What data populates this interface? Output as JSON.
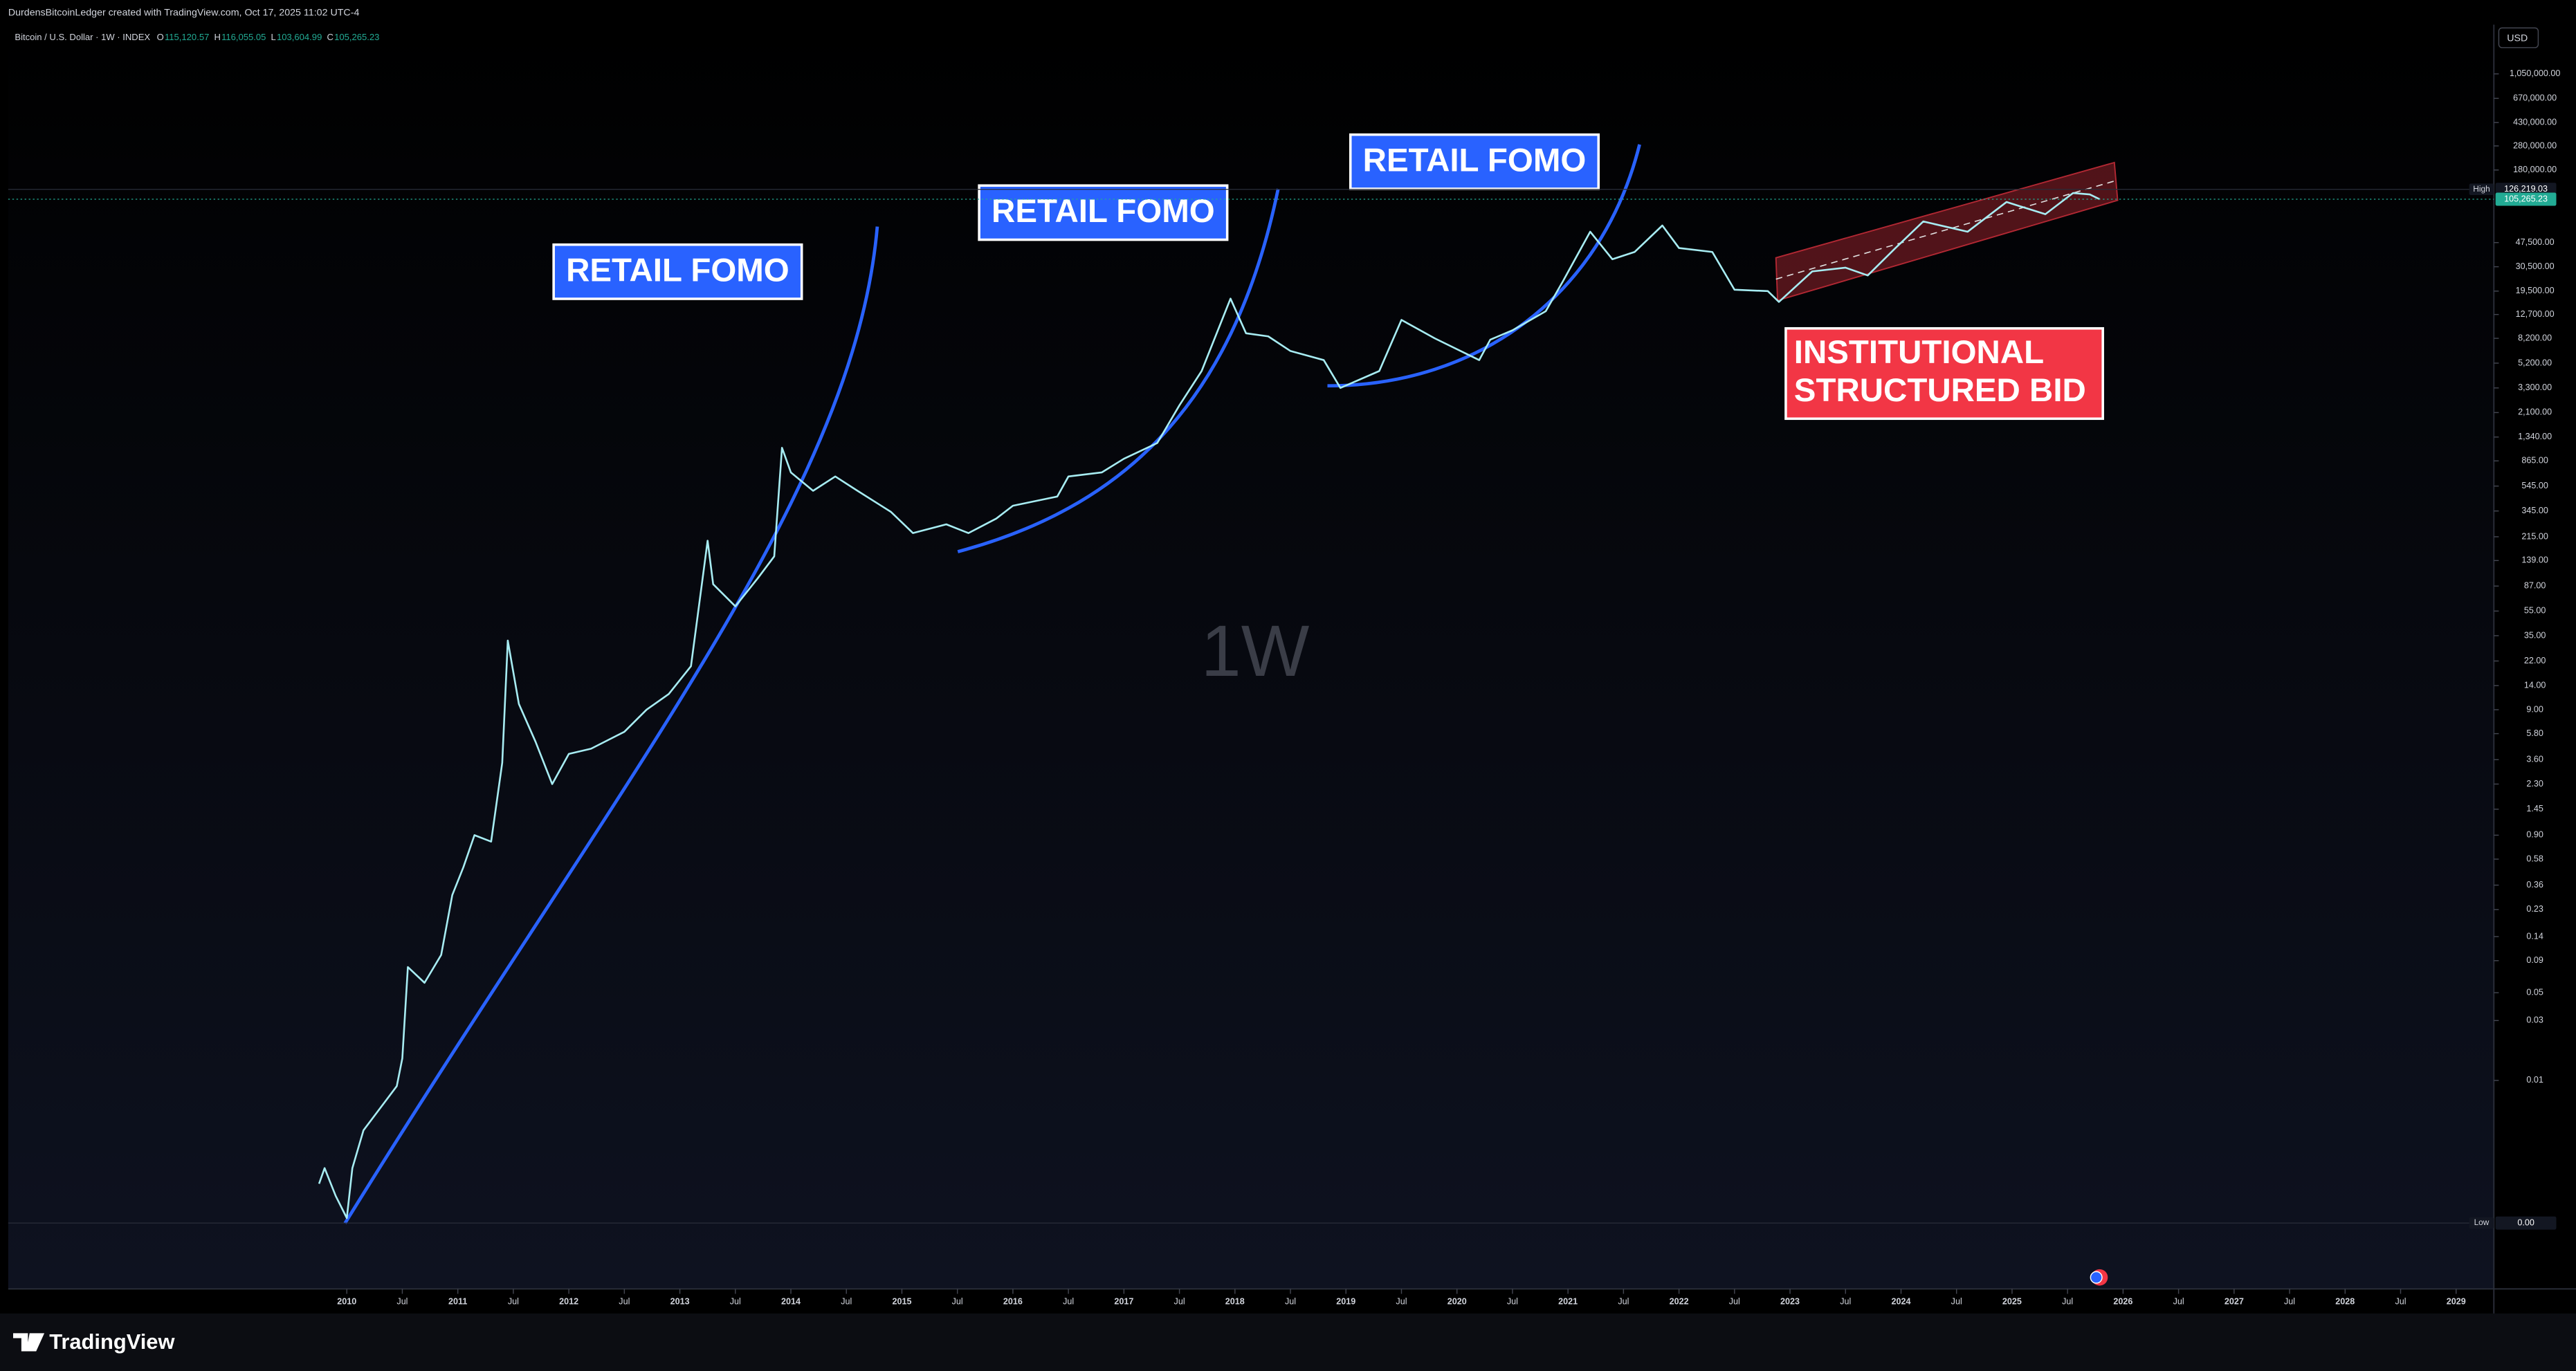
{
  "header": {
    "text": "DurdensBitcoinLedger created with TradingView.com, Oct 17, 2025 11:02 UTC-4"
  },
  "footer": {
    "brand": "TradingView"
  },
  "chart_data": {
    "type": "line",
    "symbol": "Bitcoin / U.S. Dollar · 1W · INDEX",
    "ohlc": [
      {
        "key": "O",
        "value": 115120.57,
        "label": "115,120.57"
      },
      {
        "key": "H",
        "value": 116055.05,
        "label": "116,055.05"
      },
      {
        "key": "L",
        "value": 103604.99,
        "label": "103,604.99"
      },
      {
        "key": "C",
        "value": 105265.23,
        "label": "105,265.23"
      }
    ],
    "currency": "USD",
    "watermark": "1W",
    "annotations": [
      "RETAIL FOMO",
      "RETAIL FOMO",
      "RETAIL FOMO",
      "INSTITUTIONAL",
      "STRUCTURED BID"
    ],
    "log_scale": true,
    "grid": false,
    "color": "#a7ecf2",
    "x": [
      2009.75,
      2009.8,
      2009.9,
      2010.0,
      2010.05,
      2010.15,
      2010.3,
      2010.45,
      2010.5,
      2010.55,
      2010.7,
      2010.85,
      2010.95,
      2011.05,
      2011.15,
      2011.3,
      2011.4,
      2011.45,
      2011.55,
      2011.7,
      2011.85,
      2012.0,
      2012.2,
      2012.5,
      2012.7,
      2012.9,
      2013.1,
      2013.25,
      2013.3,
      2013.5,
      2013.7,
      2013.85,
      2013.92,
      2014.0,
      2014.2,
      2014.4,
      2014.6,
      2014.9,
      2015.1,
      2015.4,
      2015.6,
      2015.85,
      2016.0,
      2016.4,
      2016.5,
      2016.8,
      2017.0,
      2017.3,
      2017.5,
      2017.7,
      2017.96,
      2018.1,
      2018.3,
      2018.5,
      2018.8,
      2018.95,
      2019.3,
      2019.5,
      2019.8,
      2020.2,
      2020.3,
      2020.5,
      2020.8,
      2020.95,
      2021.2,
      2021.4,
      2021.6,
      2021.85,
      2022.0,
      2022.3,
      2022.5,
      2022.8,
      2022.9,
      2023.2,
      2023.5,
      2023.7,
      2023.95,
      2024.2,
      2024.6,
      2024.95,
      2025.3,
      2025.55,
      2025.7,
      2025.79
    ],
    "values": [
      0.0015,
      0.002,
      0.0012,
      0.0008,
      0.002,
      0.004,
      0.006,
      0.009,
      0.015,
      0.08,
      0.06,
      0.1,
      0.3,
      0.5,
      0.9,
      0.8,
      3.4,
      32,
      10,
      5,
      2.3,
      4,
      4.4,
      6,
      9,
      12,
      20,
      200,
      90,
      60,
      100,
      150,
      1100,
      700,
      500,
      650,
      500,
      340,
      230,
      270,
      230,
      300,
      380,
      450,
      650,
      700,
      900,
      1200,
      2400,
      4500,
      17000,
      9000,
      8500,
      6500,
      5500,
      3300,
      4500,
      11500,
      8200,
      5500,
      8000,
      9500,
      13500,
      23000,
      58000,
      35000,
      40000,
      65000,
      43000,
      40000,
      20000,
      19500,
      16000,
      28000,
      30000,
      26000,
      43000,
      70000,
      58000,
      100000,
      80000,
      118000,
      115000,
      105265.23
    ],
    "xlim": [
      2006.95,
      2029.34
    ],
    "ylim": [
      0.000218,
      2441000
    ],
    "xticks": [
      2010,
      {
        "value": 2010.5,
        "label": "Jul"
      },
      2011,
      {
        "value": 2011.5,
        "label": "Jul"
      },
      2012,
      {
        "value": 2012.5,
        "label": "Jul"
      },
      2013,
      {
        "value": 2013.5,
        "label": "Jul"
      },
      2014,
      {
        "value": 2014.5,
        "label": "Jul"
      },
      2015,
      {
        "value": 2015.5,
        "label": "Jul"
      },
      2016,
      {
        "value": 2016.5,
        "label": "Jul"
      },
      2017,
      {
        "value": 2017.5,
        "label": "Jul"
      },
      2018,
      {
        "value": 2018.5,
        "label": "Jul"
      },
      2019,
      {
        "value": 2019.5,
        "label": "Jul"
      },
      2020,
      {
        "value": 2020.5,
        "label": "Jul"
      },
      2021,
      {
        "value": 2021.5,
        "label": "Jul"
      },
      2022,
      {
        "value": 2022.5,
        "label": "Jul"
      },
      2023,
      {
        "value": 2023.5,
        "label": "Jul"
      },
      2024,
      {
        "value": 2024.5,
        "label": "Jul"
      },
      2025,
      {
        "value": 2025.5,
        "label": "Jul"
      },
      2026,
      {
        "value": 2026.5,
        "label": "Jul"
      },
      2027,
      {
        "value": 2027.5,
        "label": "Jul"
      },
      2028,
      {
        "value": 2028.5,
        "label": "Jul"
      },
      2029
    ],
    "yticks": [
      {
        "value": 1050000,
        "label": "1,050,000.00"
      },
      {
        "value": 670000,
        "label": "670,000.00"
      },
      {
        "value": 430000,
        "label": "430,000.00"
      },
      {
        "value": 280000,
        "label": "280,000.00"
      },
      {
        "value": 180000,
        "label": "180,000.00"
      },
      {
        "value": 47500,
        "label": "47,500.00"
      },
      {
        "value": 30500,
        "label": "30,500.00"
      },
      {
        "value": 19500,
        "label": "19,500.00"
      },
      {
        "value": 12700,
        "label": "12,700.00"
      },
      {
        "value": 8200,
        "label": "8,200.00"
      },
      {
        "value": 5200,
        "label": "5,200.00"
      },
      {
        "value": 3300,
        "label": "3,300.00"
      },
      {
        "value": 2100,
        "label": "2,100.00"
      },
      {
        "value": 1340,
        "label": "1,340.00"
      },
      {
        "value": 865,
        "label": "865.00"
      },
      {
        "value": 545,
        "label": "545.00"
      },
      {
        "value": 345,
        "label": "345.00"
      },
      {
        "value": 215,
        "label": "215.00"
      },
      {
        "value": 139,
        "label": "139.00"
      },
      {
        "value": 87,
        "label": "87.00"
      },
      {
        "value": 55,
        "label": "55.00"
      },
      {
        "value": 35,
        "label": "35.00"
      },
      {
        "value": 22,
        "label": "22.00"
      },
      {
        "value": 14,
        "label": "14.00"
      },
      {
        "value": 9,
        "label": "9.00"
      },
      {
        "value": 5.8,
        "label": "5.80"
      },
      {
        "value": 3.6,
        "label": "3.60"
      },
      {
        "value": 2.3,
        "label": "2.30"
      },
      1.45,
      {
        "value": 0.9,
        "label": "0.90"
      },
      0.58,
      0.36,
      0.23,
      0.14,
      0.09,
      0.05,
      0.03,
      0.01
    ],
    "price_labels": [
      {
        "name": "High",
        "value": 126219.03,
        "label": "126,219.03"
      },
      {
        "value": 105265.23,
        "label": "105,265.23"
      },
      {
        "name": "Low",
        "value": 0.00073,
        "label": "0.00"
      }
    ]
  }
}
